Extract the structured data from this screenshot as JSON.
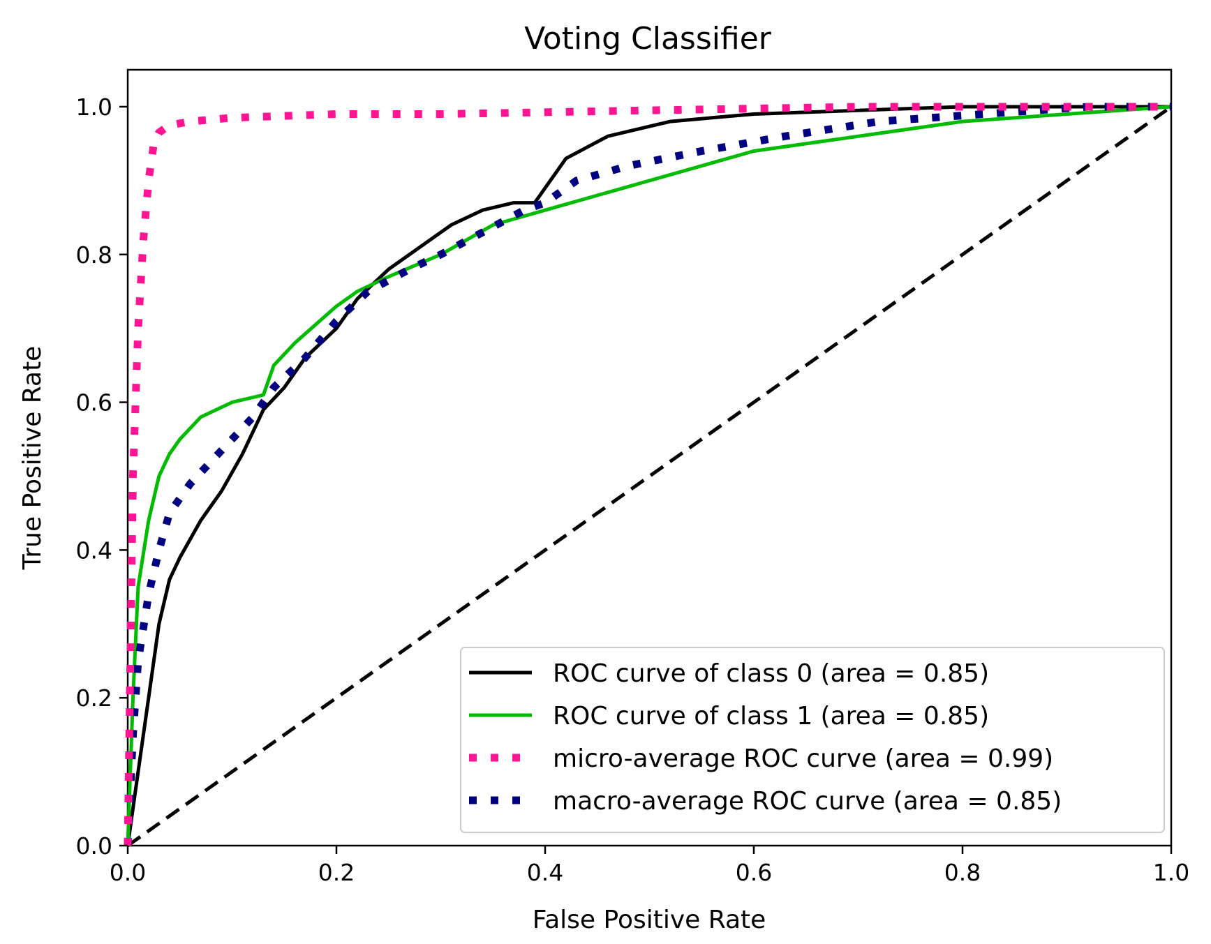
{
  "chart_data": {
    "type": "line",
    "title": "Voting Classifier",
    "xlabel": "False Positive Rate",
    "ylabel": "True Positive Rate",
    "xlim": [
      0.0,
      1.0
    ],
    "ylim": [
      0.0,
      1.05
    ],
    "xticks": [
      "0.0",
      "0.2",
      "0.4",
      "0.6",
      "0.8",
      "1.0"
    ],
    "yticks": [
      "0.0",
      "0.2",
      "0.4",
      "0.6",
      "0.8",
      "1.0"
    ],
    "grid": false,
    "legend_position": "lower-right",
    "series": [
      {
        "name": "ROC curve of class 0 (area = 0.85)",
        "color": "#000000",
        "style": "solid",
        "x": [
          0.0,
          0.01,
          0.02,
          0.03,
          0.04,
          0.05,
          0.07,
          0.09,
          0.11,
          0.13,
          0.15,
          0.17,
          0.2,
          0.22,
          0.25,
          0.28,
          0.31,
          0.34,
          0.37,
          0.39,
          0.4,
          0.42,
          0.46,
          0.52,
          0.6,
          0.7,
          0.8,
          0.9,
          1.0
        ],
        "y": [
          0.0,
          0.1,
          0.2,
          0.3,
          0.36,
          0.39,
          0.44,
          0.48,
          0.53,
          0.59,
          0.62,
          0.66,
          0.7,
          0.74,
          0.78,
          0.81,
          0.84,
          0.86,
          0.87,
          0.87,
          0.89,
          0.93,
          0.96,
          0.98,
          0.99,
          0.995,
          1.0,
          1.0,
          1.0
        ]
      },
      {
        "name": "ROC curve of class 1 (area = 0.85)",
        "color": "#00bb00",
        "style": "solid",
        "x": [
          0.0,
          0.005,
          0.01,
          0.02,
          0.03,
          0.04,
          0.05,
          0.07,
          0.1,
          0.13,
          0.14,
          0.16,
          0.2,
          0.22,
          0.25,
          0.3,
          0.35,
          0.4,
          0.45,
          0.5,
          0.6,
          0.7,
          0.8,
          0.9,
          1.0
        ],
        "y": [
          0.0,
          0.2,
          0.35,
          0.44,
          0.5,
          0.53,
          0.55,
          0.58,
          0.6,
          0.61,
          0.65,
          0.68,
          0.73,
          0.75,
          0.77,
          0.8,
          0.84,
          0.86,
          0.88,
          0.9,
          0.94,
          0.96,
          0.98,
          0.99,
          1.0
        ]
      },
      {
        "name": "micro-average ROC curve (area = 0.99)",
        "color": "#ff1493",
        "style": "dotted",
        "x": [
          0.0,
          0.005,
          0.01,
          0.015,
          0.02,
          0.025,
          0.03,
          0.04,
          0.06,
          0.1,
          0.2,
          0.3,
          0.5,
          0.7,
          0.9,
          1.0
        ],
        "y": [
          0.0,
          0.5,
          0.7,
          0.82,
          0.9,
          0.95,
          0.965,
          0.975,
          0.98,
          0.985,
          0.99,
          0.99,
          0.995,
          1.0,
          1.0,
          1.0
        ]
      },
      {
        "name": "macro-average ROC curve (area = 0.85)",
        "color": "#000080",
        "style": "dotted",
        "x": [
          0.0,
          0.005,
          0.01,
          0.02,
          0.03,
          0.04,
          0.06,
          0.08,
          0.1,
          0.12,
          0.14,
          0.17,
          0.2,
          0.23,
          0.27,
          0.3,
          0.34,
          0.38,
          0.4,
          0.43,
          0.48,
          0.55,
          0.63,
          0.72,
          0.82,
          0.92,
          1.0
        ],
        "y": [
          0.0,
          0.15,
          0.25,
          0.34,
          0.4,
          0.45,
          0.49,
          0.52,
          0.55,
          0.58,
          0.62,
          0.66,
          0.71,
          0.75,
          0.78,
          0.8,
          0.83,
          0.86,
          0.87,
          0.9,
          0.92,
          0.94,
          0.96,
          0.98,
          0.99,
          1.0,
          1.0
        ]
      },
      {
        "name": "chance",
        "color": "#000000",
        "style": "dashed",
        "x": [
          0.0,
          1.0
        ],
        "y": [
          0.0,
          1.0
        ]
      }
    ],
    "legend": [
      "ROC curve of class 0 (area = 0.85)",
      "ROC curve of class 1 (area = 0.85)",
      "micro-average ROC curve (area = 0.99)",
      "macro-average ROC curve (area = 0.85)"
    ]
  }
}
